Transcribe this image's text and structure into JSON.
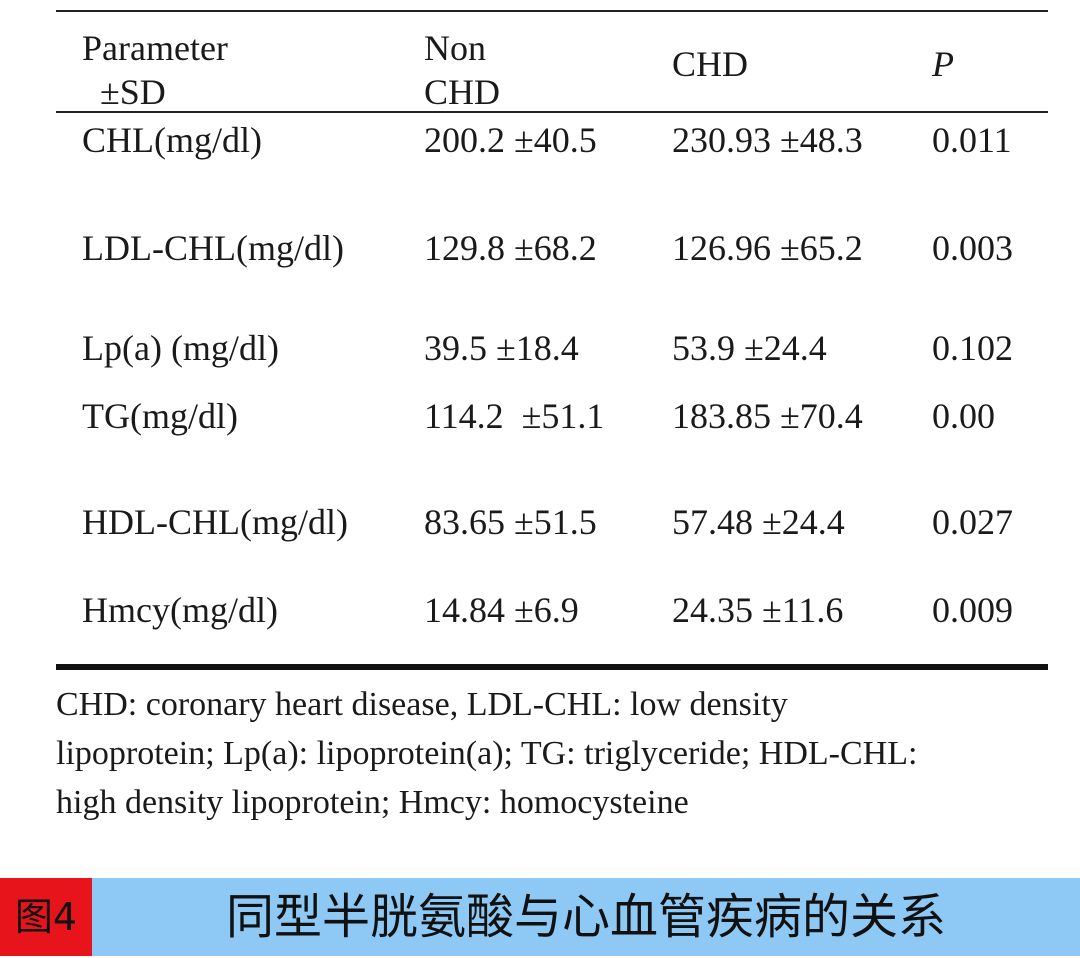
{
  "table": {
    "header": {
      "col1_line1": "Parameter",
      "col1_line2": "±SD",
      "col2_line1": "Non",
      "col2_line2": "CHD",
      "col3": "CHD",
      "col4": "P"
    },
    "rows": [
      {
        "param": "CHL(mg/dl)",
        "non_chd": "200.2 ±40.5",
        "chd": "230.93 ±48.3",
        "p": "0.011"
      },
      {
        "param": "LDL-CHL(mg/dl)",
        "non_chd": "129.8 ±68.2",
        "chd": "126.96 ±65.2",
        "p": "0.003"
      },
      {
        "param": "Lp(a) (mg/dl)",
        "non_chd": "39.5 ±18.4",
        "chd": "53.9 ±24.4",
        "p": "0.102"
      },
      {
        "param": "TG(mg/dl)",
        "non_chd": "114.2  ±51.1",
        "chd": "183.85 ±70.4",
        "p": "0.00"
      },
      {
        "param": "HDL-CHL(mg/dl)",
        "non_chd": "83.65 ±51.5",
        "chd": "57.48 ±24.4",
        "p": "0.027"
      },
      {
        "param": "Hmcy(mg/dl)",
        "non_chd": "14.84 ±6.9",
        "chd": "24.35 ±11.6",
        "p": "0.009"
      }
    ]
  },
  "footnote": {
    "line1": "CHD: coronary heart disease, LDL-CHL: low density",
    "line2": "lipoprotein; Lp(a): lipoprotein(a); TG: triglyceride; HDL-CHL:",
    "line3": "high density lipoprotein; Hmcy: homocysteine"
  },
  "caption": {
    "tag": "图4",
    "title": "同型半胱氨酸与心血管疾病的关系"
  },
  "colors": {
    "caption_bar": "#8ec8f4",
    "caption_tag": "#e8141c"
  }
}
